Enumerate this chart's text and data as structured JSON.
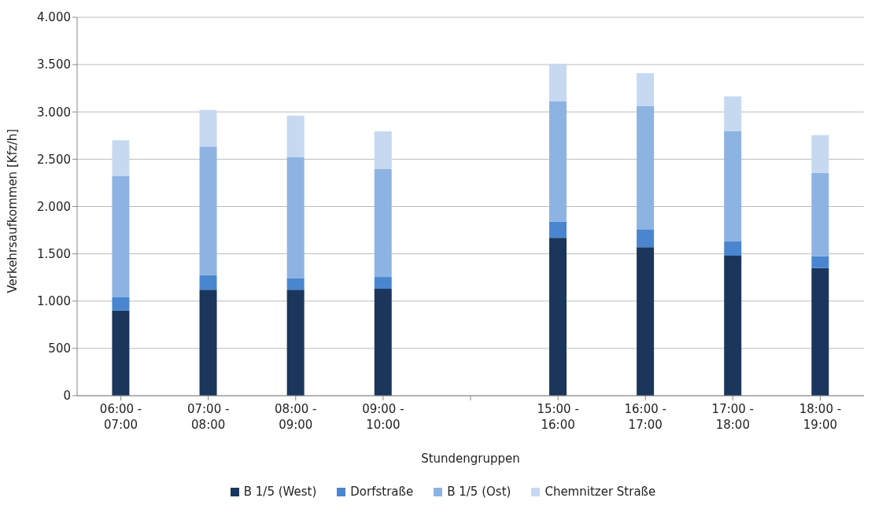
{
  "chart_data": {
    "type": "bar",
    "stacked": true,
    "xlabel": "Stundengruppen",
    "ylabel": "Verkehrsaufkommen [Kfz/h]",
    "categories": [
      "06:00 - 07:00",
      "07:00 - 08:00",
      "08:00 - 09:00",
      "09:00 - 10:00",
      null,
      "15:00 - 16:00",
      "16:00 - 17:00",
      "17:00 - 18:00",
      "18:00 - 19:00"
    ],
    "series": [
      {
        "name": "B 1/5 (West)",
        "color": "#1b365d",
        "values": [
          900,
          1120,
          1120,
          1130,
          null,
          1670,
          1570,
          1480,
          1350
        ]
      },
      {
        "name": "Dorfstraße",
        "color": "#4a86d0",
        "values": [
          140,
          155,
          120,
          125,
          null,
          170,
          190,
          155,
          125
        ]
      },
      {
        "name": "B 1/5 (Ost)",
        "color": "#8db3e2",
        "values": [
          1280,
          1360,
          1280,
          1140,
          null,
          1270,
          1300,
          1160,
          880
        ]
      },
      {
        "name": "Chemnitzer Straße",
        "color": "#c6d9f1",
        "values": [
          380,
          385,
          440,
          400,
          null,
          400,
          350,
          370,
          400
        ]
      }
    ],
    "ylim": [
      0,
      4000
    ],
    "yticks": [
      {
        "value": 0,
        "label": "0"
      },
      {
        "value": 500,
        "label": "500"
      },
      {
        "value": 1000,
        "label": "1.000"
      },
      {
        "value": 1500,
        "label": "1.500"
      },
      {
        "value": 2000,
        "label": "2.000"
      },
      {
        "value": 2500,
        "label": "2.500"
      },
      {
        "value": 3000,
        "label": "3.000"
      },
      {
        "value": 3500,
        "label": "3.500"
      },
      {
        "value": 4000,
        "label": "4.000"
      }
    ],
    "grid": "y",
    "legend": "bottom"
  }
}
